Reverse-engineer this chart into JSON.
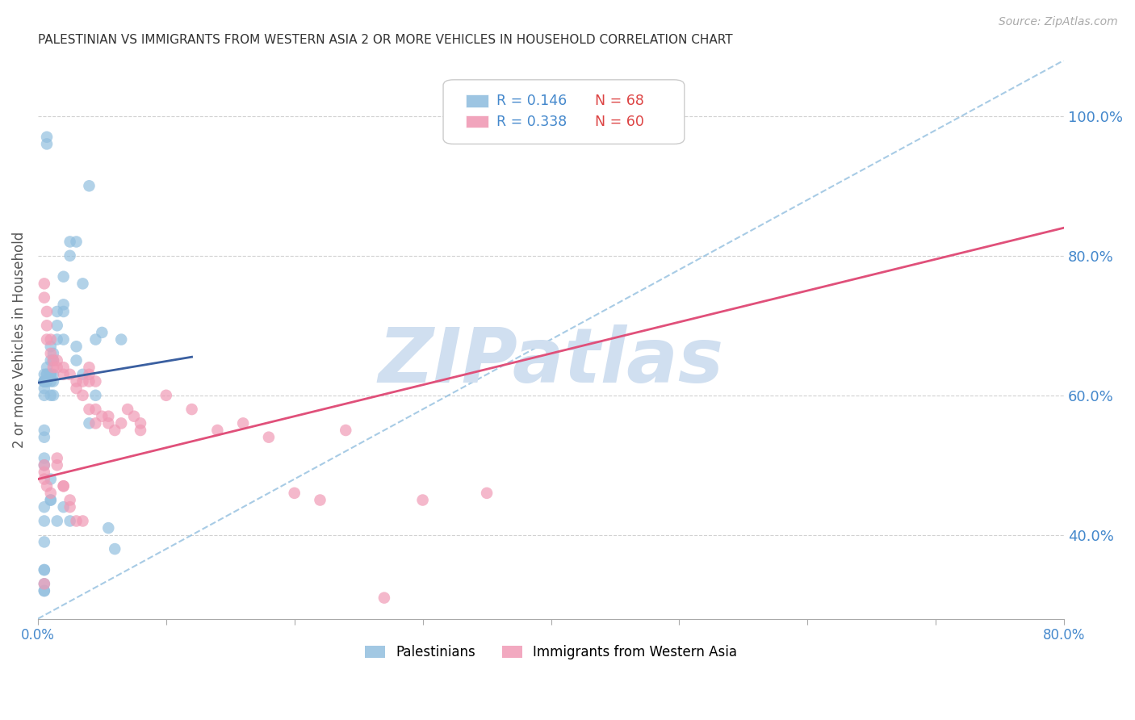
{
  "title": "PALESTINIAN VS IMMIGRANTS FROM WESTERN ASIA 2 OR MORE VEHICLES IN HOUSEHOLD CORRELATION CHART",
  "source": "Source: ZipAtlas.com",
  "ylabel": "2 or more Vehicles in Household",
  "xlim": [
    0.0,
    0.8
  ],
  "ylim": [
    0.28,
    1.08
  ],
  "right_yticks": [
    0.4,
    0.6,
    0.8,
    1.0
  ],
  "right_yticklabels": [
    "40.0%",
    "60.0%",
    "80.0%",
    "100.0%"
  ],
  "xticks": [
    0.0,
    0.1,
    0.2,
    0.3,
    0.4,
    0.5,
    0.6,
    0.7,
    0.8
  ],
  "xticklabels": [
    "0.0%",
    "",
    "",
    "",
    "",
    "",
    "",
    "",
    "80.0%"
  ],
  "legend_blue_r": "R = 0.146",
  "legend_blue_n": "N = 68",
  "legend_pink_r": "R = 0.338",
  "legend_pink_n": "N = 60",
  "blue_color": "#92bfdf",
  "pink_color": "#f09ab5",
  "trend_blue_color": "#3a5fa0",
  "trend_pink_color": "#e0507a",
  "dashed_line_color": "#92bfdf",
  "watermark_color": "#d0dff0",
  "watermark_text": "ZIPatlas",
  "background_color": "#ffffff",
  "grid_color": "#cccccc",
  "title_color": "#333333",
  "axis_label_color": "#4488cc",
  "tick_label_color": "#4488cc",
  "blue_points_x": [
    0.005,
    0.005,
    0.005,
    0.005,
    0.005,
    0.005,
    0.005,
    0.005,
    0.005,
    0.005,
    0.005,
    0.005,
    0.007,
    0.007,
    0.007,
    0.007,
    0.007,
    0.007,
    0.01,
    0.01,
    0.01,
    0.01,
    0.01,
    0.01,
    0.01,
    0.01,
    0.012,
    0.012,
    0.012,
    0.012,
    0.012,
    0.015,
    0.015,
    0.015,
    0.015,
    0.02,
    0.02,
    0.02,
    0.02,
    0.02,
    0.025,
    0.025,
    0.025,
    0.03,
    0.03,
    0.03,
    0.035,
    0.035,
    0.04,
    0.04,
    0.045,
    0.045,
    0.05,
    0.055,
    0.06,
    0.065,
    0.007,
    0.007,
    0.01,
    0.01,
    0.005,
    0.005,
    0.005,
    0.005,
    0.005,
    0.005,
    0.005,
    0.005
  ],
  "blue_points_y": [
    0.63,
    0.62,
    0.62,
    0.62,
    0.62,
    0.62,
    0.61,
    0.6,
    0.55,
    0.54,
    0.51,
    0.5,
    0.64,
    0.63,
    0.63,
    0.62,
    0.62,
    0.62,
    0.67,
    0.65,
    0.63,
    0.63,
    0.62,
    0.6,
    0.48,
    0.45,
    0.66,
    0.65,
    0.63,
    0.62,
    0.6,
    0.72,
    0.7,
    0.68,
    0.42,
    0.77,
    0.73,
    0.72,
    0.68,
    0.44,
    0.82,
    0.8,
    0.42,
    0.82,
    0.67,
    0.65,
    0.76,
    0.63,
    0.9,
    0.56,
    0.68,
    0.6,
    0.69,
    0.41,
    0.38,
    0.68,
    0.96,
    0.97,
    0.63,
    0.45,
    0.35,
    0.33,
    0.32,
    0.32,
    0.44,
    0.42,
    0.39,
    0.35
  ],
  "pink_points_x": [
    0.005,
    0.005,
    0.005,
    0.005,
    0.005,
    0.005,
    0.007,
    0.007,
    0.007,
    0.007,
    0.01,
    0.01,
    0.01,
    0.012,
    0.012,
    0.015,
    0.015,
    0.015,
    0.015,
    0.02,
    0.02,
    0.02,
    0.02,
    0.025,
    0.025,
    0.025,
    0.03,
    0.03,
    0.03,
    0.035,
    0.035,
    0.035,
    0.04,
    0.04,
    0.04,
    0.04,
    0.045,
    0.045,
    0.045,
    0.05,
    0.055,
    0.055,
    0.06,
    0.065,
    0.07,
    0.075,
    0.08,
    0.08,
    0.1,
    0.12,
    0.14,
    0.16,
    0.18,
    0.2,
    0.22,
    0.24,
    0.27,
    0.3,
    0.35,
    0.4
  ],
  "pink_points_y": [
    0.76,
    0.74,
    0.5,
    0.49,
    0.48,
    0.33,
    0.72,
    0.7,
    0.68,
    0.47,
    0.68,
    0.66,
    0.46,
    0.65,
    0.64,
    0.65,
    0.64,
    0.51,
    0.5,
    0.64,
    0.63,
    0.47,
    0.47,
    0.63,
    0.45,
    0.44,
    0.62,
    0.61,
    0.42,
    0.62,
    0.6,
    0.42,
    0.64,
    0.63,
    0.62,
    0.58,
    0.62,
    0.58,
    0.56,
    0.57,
    0.57,
    0.56,
    0.55,
    0.56,
    0.58,
    0.57,
    0.56,
    0.55,
    0.6,
    0.58,
    0.55,
    0.56,
    0.54,
    0.46,
    0.45,
    0.55,
    0.31,
    0.45,
    0.46,
    1.01
  ],
  "blue_trend_x": [
    0.0,
    0.12
  ],
  "blue_trend_y": [
    0.618,
    0.655
  ],
  "pink_trend_x": [
    0.0,
    0.8
  ],
  "pink_trend_y": [
    0.48,
    0.84
  ],
  "diag_line_x": [
    0.0,
    0.8
  ],
  "diag_line_y": [
    0.28,
    1.08
  ]
}
